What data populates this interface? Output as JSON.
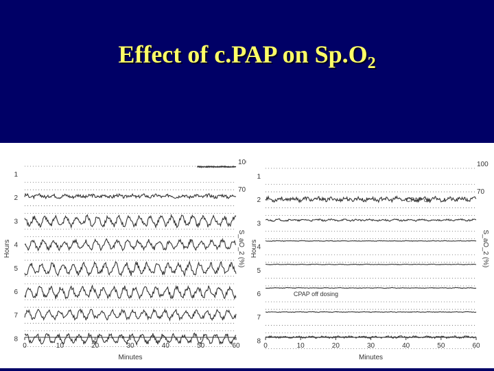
{
  "slide": {
    "title_main": "Effect of c.PAP on Sp.O",
    "title_sub": "2"
  },
  "colors": {
    "header_bg": "#000066",
    "title": "#ffff66",
    "trace": "#333333",
    "grid": "#666666"
  },
  "chart_data": [
    {
      "type": "line",
      "title": "",
      "xlabel": "Minutes",
      "ylabel": "Hours",
      "ylabel_right": "S_aO_2 (%)",
      "x_ticks": [
        0,
        10,
        20,
        30,
        40,
        50,
        60
      ],
      "xlim": [
        0,
        60
      ],
      "hour_labels": [
        "1",
        "2",
        "3",
        "4",
        "5",
        "6",
        "7",
        "8"
      ],
      "right_ticks": [
        "100",
        "70"
      ],
      "annotations": [],
      "series": [
        {
          "hour": 1,
          "pattern": "flat_high_partial",
          "start_min": 49,
          "base_pct": 99,
          "osc_amp_pct": 1
        },
        {
          "hour": 2,
          "pattern": "mild",
          "base_pct": 88,
          "osc_amp_pct": 6
        },
        {
          "hour": 3,
          "pattern": "desaturation_cycles",
          "base_pct": 85,
          "osc_amp_pct": 16
        },
        {
          "hour": 4,
          "pattern": "desaturation_cycles",
          "base_pct": 85,
          "osc_amp_pct": 15
        },
        {
          "hour": 5,
          "pattern": "desaturation_cycles",
          "base_pct": 84,
          "osc_amp_pct": 18
        },
        {
          "hour": 6,
          "pattern": "desaturation_cycles",
          "base_pct": 84,
          "osc_amp_pct": 17
        },
        {
          "hour": 7,
          "pattern": "desaturation_cycles",
          "base_pct": 86,
          "osc_amp_pct": 14
        },
        {
          "hour": 8,
          "pattern": "desaturation_cycles",
          "base_pct": 85,
          "osc_amp_pct": 15
        }
      ]
    },
    {
      "type": "line",
      "title": "",
      "xlabel": "Minutes",
      "ylabel": "Hours",
      "ylabel_right": "S_aO_2 (%)",
      "x_ticks": [
        0,
        10,
        20,
        30,
        40,
        50,
        60
      ],
      "xlim": [
        0,
        60
      ],
      "hour_labels": [
        "1",
        "2",
        "3",
        "4",
        "5",
        "6",
        "7",
        "8"
      ],
      "right_ticks": [
        "100",
        "70"
      ],
      "annotations": [
        {
          "text": "CPAP on",
          "hour": 2,
          "minute": 40
        },
        {
          "text": "CPAP off dosing",
          "hour": 6,
          "minute": 8
        }
      ],
      "series": [
        {
          "hour": 1,
          "pattern": "empty",
          "base_pct": 0,
          "osc_amp_pct": 0
        },
        {
          "hour": 2,
          "pattern": "mild",
          "base_pct": 86,
          "osc_amp_pct": 7
        },
        {
          "hour": 3,
          "pattern": "mild",
          "base_pct": 91,
          "osc_amp_pct": 3
        },
        {
          "hour": 4,
          "pattern": "flat",
          "base_pct": 96,
          "osc_amp_pct": 1
        },
        {
          "hour": 5,
          "pattern": "flat",
          "base_pct": 96,
          "osc_amp_pct": 1
        },
        {
          "hour": 6,
          "pattern": "flat",
          "base_pct": 96,
          "osc_amp_pct": 1
        },
        {
          "hour": 7,
          "pattern": "flat",
          "base_pct": 95,
          "osc_amp_pct": 1
        },
        {
          "hour": 8,
          "pattern": "mild",
          "base_pct": 92,
          "osc_amp_pct": 3
        }
      ]
    }
  ]
}
